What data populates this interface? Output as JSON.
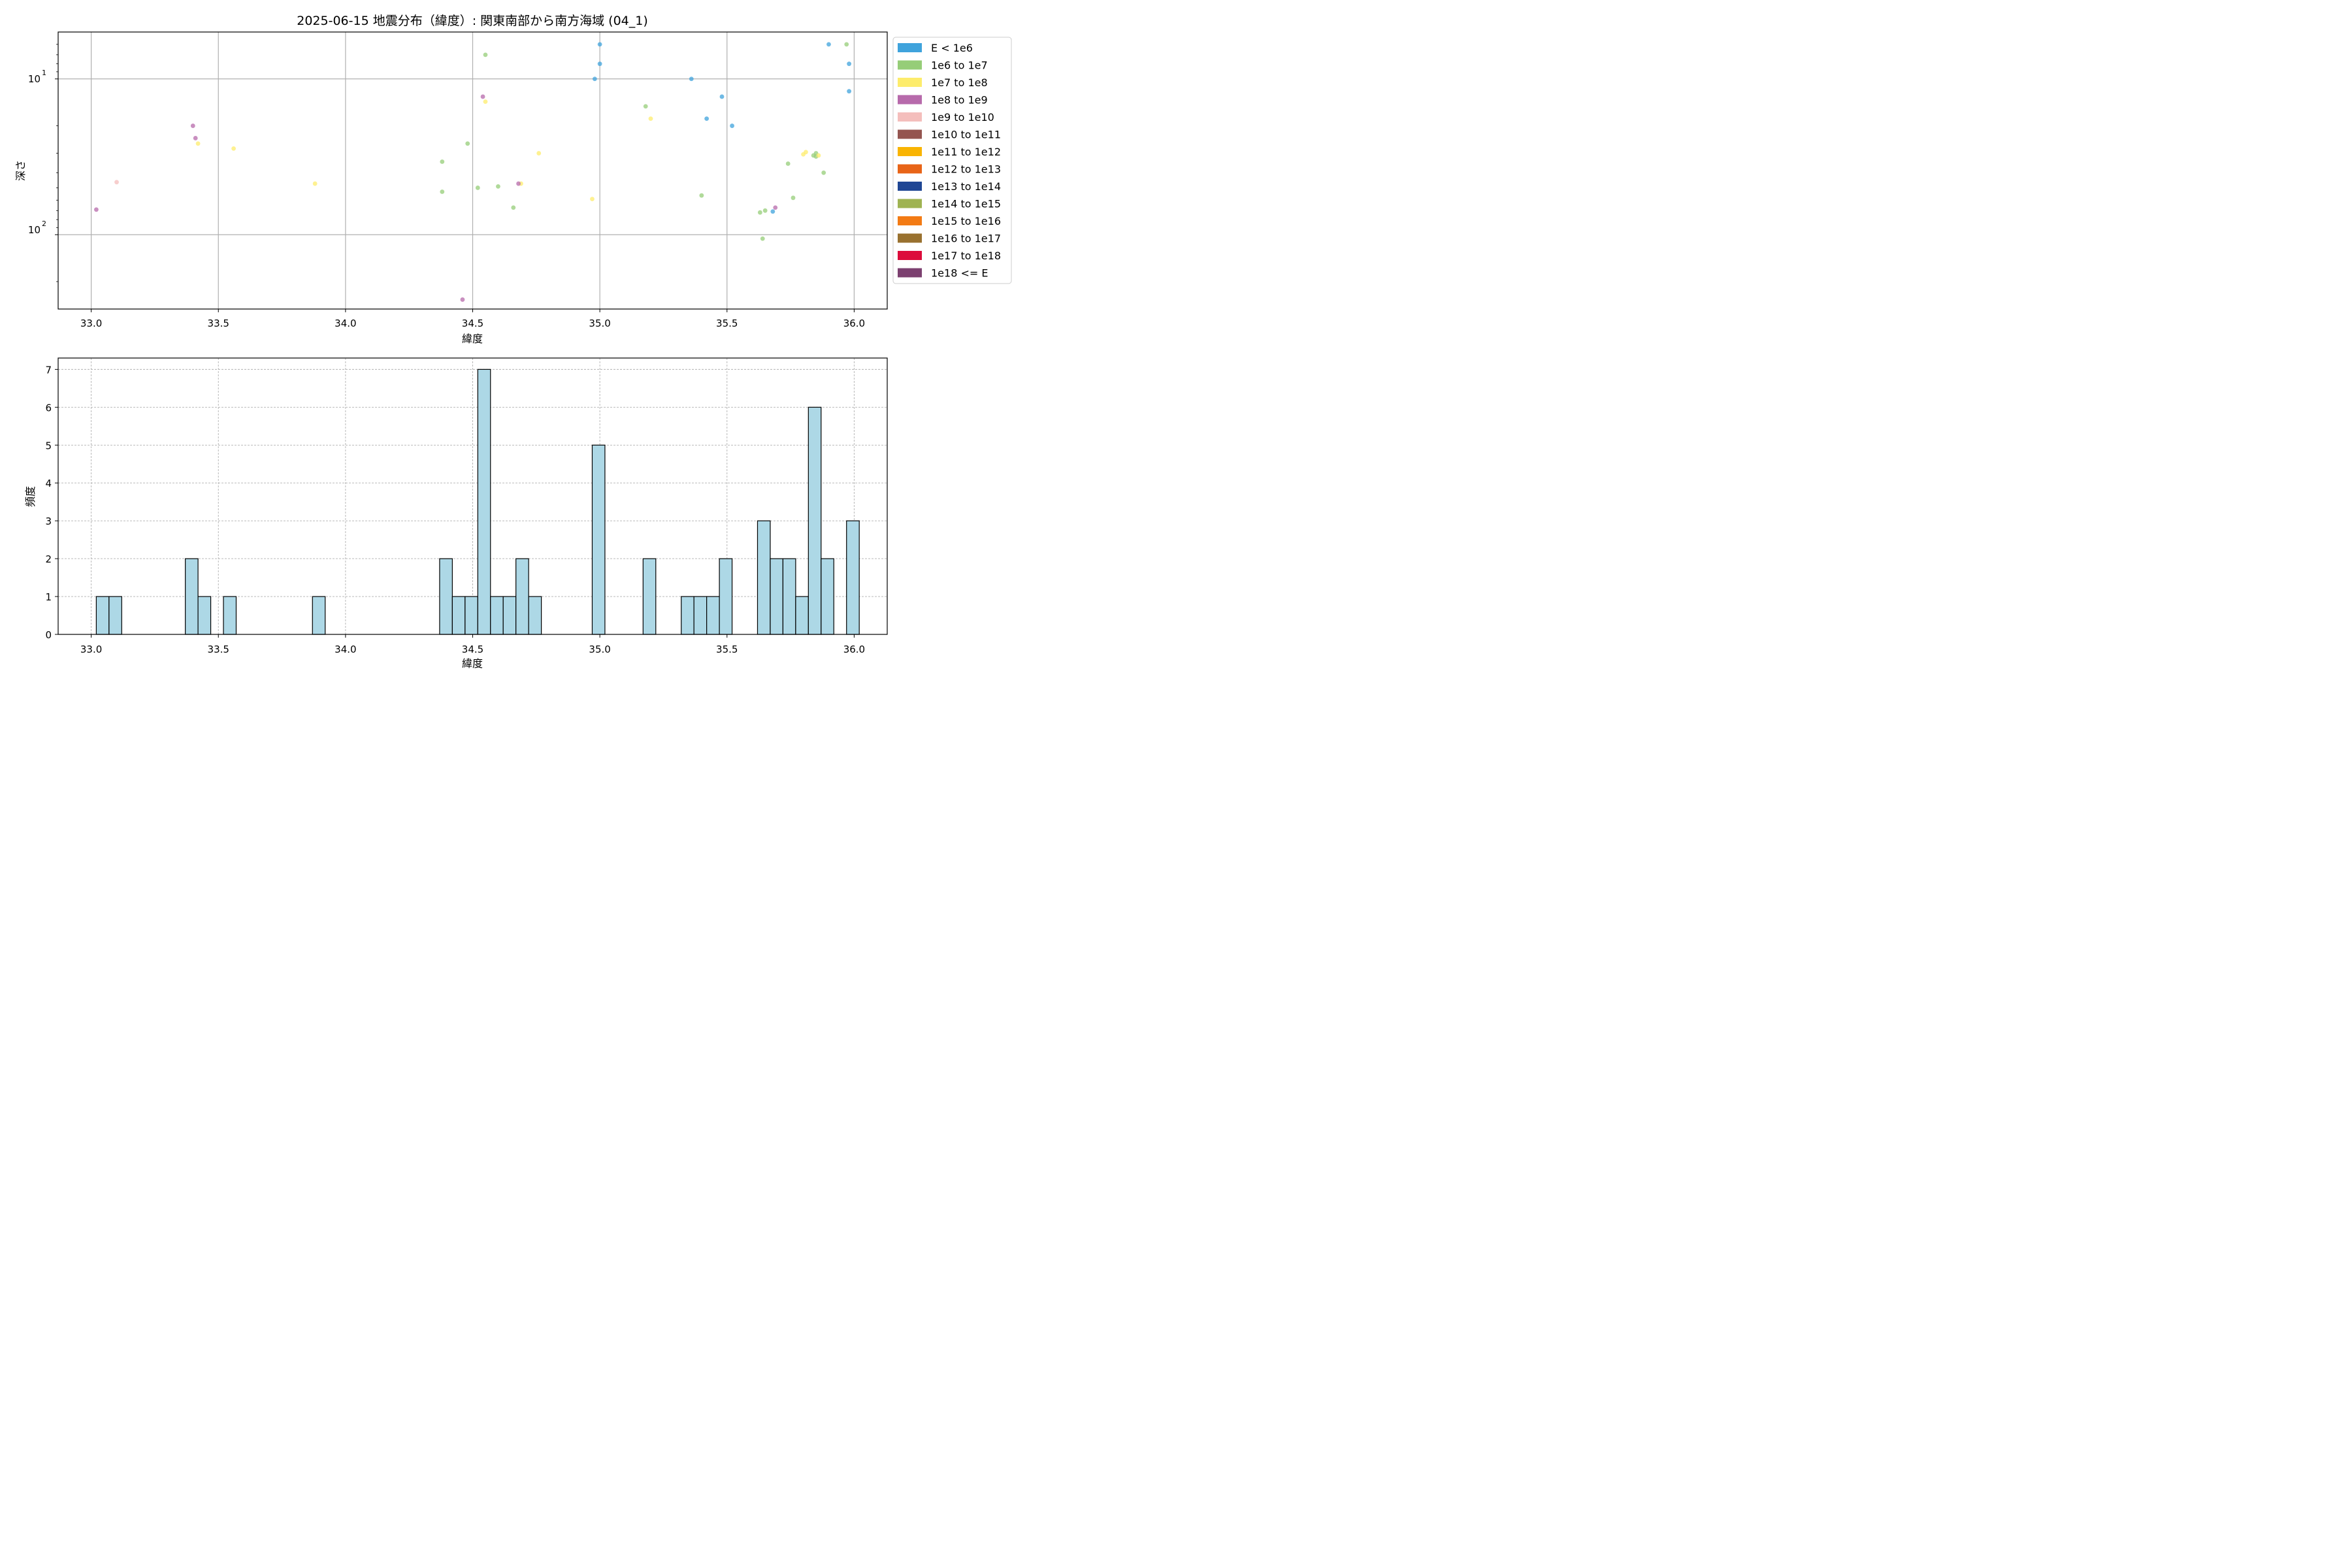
{
  "chart_data": [
    {
      "type": "scatter",
      "title": "2025-06-15 地震分布（緯度）: 関東南部から南方海域 (04_1)",
      "xlabel": "緯度",
      "ylabel": "深さ",
      "xlim": [
        32.87,
        36.13
      ],
      "ylim": [
        300,
        5
      ],
      "y_scale": "log",
      "y_inverted": true,
      "xticks": [
        "33.0",
        "33.5",
        "34.0",
        "34.5",
        "35.0",
        "35.5",
        "36.0"
      ],
      "yticks": [
        {
          "value": 10,
          "base": "10",
          "exp": "1"
        },
        {
          "value": 100,
          "base": "10",
          "exp": "2"
        }
      ],
      "grid": true,
      "legend_position": "outside-right",
      "legend": [
        {
          "label": "E < 1e6",
          "color": "#3fa3dc"
        },
        {
          "label": "1e6 to 1e7",
          "color": "#96cd78"
        },
        {
          "label": "1e7 to 1e8",
          "color": "#fdec6c"
        },
        {
          "label": "1e8 to 1e9",
          "color": "#b76aab"
        },
        {
          "label": "1e9 to 1e10",
          "color": "#f4bebc"
        },
        {
          "label": "1e10 to 1e11",
          "color": "#945550"
        },
        {
          "label": "1e11 to 1e12",
          "color": "#f9b402"
        },
        {
          "label": "1e12 to 1e13",
          "color": "#e86417"
        },
        {
          "label": "1e13 to 1e14",
          "color": "#1f4694"
        },
        {
          "label": "1e14 to 1e15",
          "color": "#9fb352"
        },
        {
          "label": "1e15 to 1e16",
          "color": "#f37b14"
        },
        {
          "label": "1e16 to 1e17",
          "color": "#99712f"
        },
        {
          "label": "1e17 to 1e18",
          "color": "#dc0c3b"
        },
        {
          "label": "1e18 <= E",
          "color": "#7c4070"
        }
      ],
      "series": [
        {
          "name": "E < 1e6",
          "color": "#3fa3dc",
          "points": [
            [
              35.0,
              6.0
            ],
            [
              35.0,
              8.0
            ],
            [
              34.98,
              10.0
            ],
            [
              35.36,
              10.0
            ],
            [
              35.48,
              13.0
            ],
            [
              35.42,
              18.0
            ],
            [
              35.52,
              20.0
            ],
            [
              35.68,
              71.0
            ],
            [
              35.9,
              6.0
            ],
            [
              35.98,
              8.0
            ],
            [
              35.98,
              12.0
            ]
          ]
        },
        {
          "name": "1e6 to 1e7",
          "color": "#96cd78",
          "points": [
            [
              34.55,
              7.0
            ],
            [
              34.48,
              26.0
            ],
            [
              34.38,
              34.0
            ],
            [
              34.38,
              53.0
            ],
            [
              34.52,
              50.0
            ],
            [
              34.6,
              49.0
            ],
            [
              34.66,
              67.0
            ],
            [
              35.18,
              15.0
            ],
            [
              35.4,
              56.0
            ],
            [
              35.63,
              72.0
            ],
            [
              35.65,
              70.0
            ],
            [
              35.64,
              106.0
            ],
            [
              35.74,
              35.0
            ],
            [
              35.76,
              58.0
            ],
            [
              35.84,
              31.0
            ],
            [
              35.85,
              30.0
            ],
            [
              35.85,
              31.5
            ],
            [
              35.88,
              40.0
            ],
            [
              35.97,
              6.0
            ]
          ]
        },
        {
          "name": "1e7 to 1e8",
          "color": "#fdec6c",
          "points": [
            [
              33.42,
              26.0
            ],
            [
              33.56,
              28.0
            ],
            [
              33.88,
              47.0
            ],
            [
              34.55,
              14.0
            ],
            [
              34.69,
              47.0
            ],
            [
              34.76,
              30.0
            ],
            [
              34.97,
              59.0
            ],
            [
              35.2,
              18.0
            ],
            [
              35.8,
              30.5
            ],
            [
              35.81,
              29.5
            ],
            [
              35.86,
              31.0
            ]
          ]
        },
        {
          "name": "1e8 to 1e9",
          "color": "#b76aab",
          "points": [
            [
              33.02,
              69.0
            ],
            [
              33.4,
              20.0
            ],
            [
              33.41,
              24.0
            ],
            [
              34.54,
              13.0
            ],
            [
              34.68,
              47.0
            ],
            [
              35.69,
              67.0
            ],
            [
              34.46,
              261.0
            ]
          ]
        },
        {
          "name": "1e9 to 1e10",
          "color": "#f4bebc",
          "points": [
            [
              33.1,
              46.0
            ]
          ]
        }
      ]
    },
    {
      "type": "bar",
      "subtype": "histogram",
      "title": "",
      "xlabel": "緯度",
      "ylabel": "頻度",
      "xlim": [
        32.87,
        36.13
      ],
      "ylim": [
        0,
        7.3
      ],
      "xticks": [
        "33.0",
        "33.5",
        "34.0",
        "34.5",
        "35.0",
        "35.5",
        "36.0"
      ],
      "yticks": [
        "0",
        "1",
        "2",
        "3",
        "4",
        "5",
        "6",
        "7"
      ],
      "grid": true,
      "bar_color": "#add8e6",
      "bins": [
        {
          "x0": 33.02,
          "x1": 33.07,
          "count": 1
        },
        {
          "x0": 33.07,
          "x1": 33.12,
          "count": 1
        },
        {
          "x0": 33.37,
          "x1": 33.42,
          "count": 2
        },
        {
          "x0": 33.42,
          "x1": 33.47,
          "count": 1
        },
        {
          "x0": 33.52,
          "x1": 33.57,
          "count": 1
        },
        {
          "x0": 33.87,
          "x1": 33.92,
          "count": 1
        },
        {
          "x0": 34.37,
          "x1": 34.42,
          "count": 2
        },
        {
          "x0": 34.42,
          "x1": 34.47,
          "count": 1
        },
        {
          "x0": 34.47,
          "x1": 34.52,
          "count": 1
        },
        {
          "x0": 34.52,
          "x1": 34.57,
          "count": 7
        },
        {
          "x0": 34.57,
          "x1": 34.62,
          "count": 1
        },
        {
          "x0": 34.62,
          "x1": 34.67,
          "count": 1
        },
        {
          "x0": 34.67,
          "x1": 34.72,
          "count": 2
        },
        {
          "x0": 34.72,
          "x1": 34.77,
          "count": 1
        },
        {
          "x0": 34.97,
          "x1": 35.02,
          "count": 5
        },
        {
          "x0": 35.17,
          "x1": 35.22,
          "count": 2
        },
        {
          "x0": 35.32,
          "x1": 35.37,
          "count": 1
        },
        {
          "x0": 35.37,
          "x1": 35.42,
          "count": 1
        },
        {
          "x0": 35.42,
          "x1": 35.47,
          "count": 1
        },
        {
          "x0": 35.47,
          "x1": 35.52,
          "count": 2
        },
        {
          "x0": 35.62,
          "x1": 35.67,
          "count": 3
        },
        {
          "x0": 35.67,
          "x1": 35.72,
          "count": 2
        },
        {
          "x0": 35.72,
          "x1": 35.77,
          "count": 2
        },
        {
          "x0": 35.77,
          "x1": 35.82,
          "count": 1
        },
        {
          "x0": 35.82,
          "x1": 35.87,
          "count": 6
        },
        {
          "x0": 35.87,
          "x1": 35.92,
          "count": 2
        },
        {
          "x0": 35.97,
          "x1": 36.02,
          "count": 3
        }
      ]
    }
  ]
}
